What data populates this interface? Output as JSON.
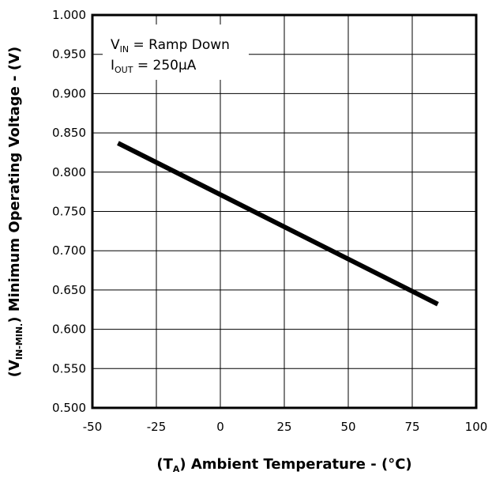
{
  "chart_data": {
    "type": "line",
    "title": "",
    "xlabel": {
      "prefix": "(T",
      "sub": "A",
      "suffix": ")  Ambient Temperature - (°C)"
    },
    "ylabel": {
      "prefix": "(V",
      "sub": "IN-MIN.",
      "suffix": ")  Minimum Operating Voltage - (V)"
    },
    "xlim": [
      -50,
      100
    ],
    "ylim": [
      0.5,
      1.0
    ],
    "x_ticks": [
      "-50",
      "-25",
      "0",
      "25",
      "50",
      "75",
      "100"
    ],
    "y_ticks": [
      "0.500",
      "0.550",
      "0.600",
      "0.650",
      "0.700",
      "0.750",
      "0.800",
      "0.850",
      "0.900",
      "0.950",
      "1.000"
    ],
    "grid": true,
    "legend": "none",
    "annotation": {
      "line1_main": "V",
      "line1_sub": "IN",
      "line1_rest": " = Ramp Down",
      "line2_main": "I",
      "line2_sub": "OUT",
      "line2_rest": " = 250µA"
    },
    "series": [
      {
        "x": [
          -40,
          85
        ],
        "y": [
          0.837,
          0.632
        ],
        "color": "#000000"
      }
    ]
  }
}
